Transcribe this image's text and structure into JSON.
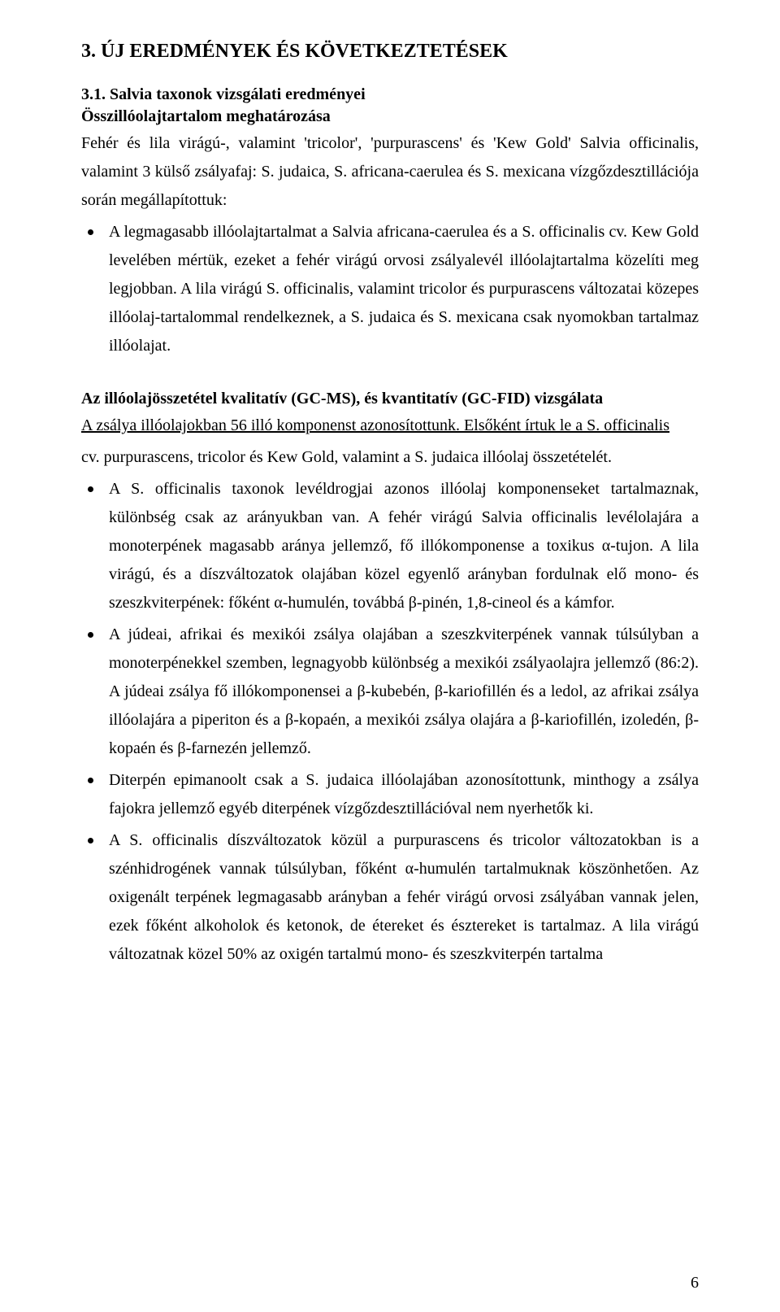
{
  "headings": {
    "h1": "3. ÚJ EREDMÉNYEK ÉS KÖVETKEZTETÉSEK",
    "h2": "3.1. Salvia taxonok vizsgálati eredményei",
    "h3_1": "Összillóolajtartalom meghatározása",
    "h3_2": "Az illóolajösszetétel kvalitatív (GC-MS), és kvantitatív (GC-FID) vizsgálata"
  },
  "intro1": "Fehér és lila virágú-, valamint 'tricolor', 'purpurascens' és 'Kew Gold' Salvia officinalis, valamint 3 külső zsályafaj: S. judaica, S. africana-caerulea és S. mexicana vízgőzdesztillációja során megállapítottuk:",
  "bullets1": [
    "A legmagasabb illóolajtartalmat a Salvia africana-caerulea és a S. officinalis cv. Kew Gold levelében mértük, ezeket a fehér virágú orvosi zsályalevél illóolajtartalma közelíti meg legjobban. A lila virágú S. officinalis, valamint tricolor és purpurascens változatai közepes illóolaj-tartalommal rendelkeznek, a S. judaica és S. mexicana csak nyomokban tartalmaz illóolajat."
  ],
  "intro2a": "A zsálya illóolajokban 56 illó komponenst azonosítottunk. Elsőként írtuk le a S. officinalis",
  "intro2b": "cv. purpurascens, tricolor és Kew Gold, valamint a S. judaica illóolaj összetételét.",
  "bullets2": [
    "A S. officinalis taxonok levéldrogjai azonos illóolaj komponenseket tartalmaznak, különbség csak az arányukban van. A fehér virágú Salvia officinalis levélolajára a monoterpének magasabb aránya jellemző, fő illókomponense a toxikus α-tujon. A lila virágú, és a díszváltozatok olajában közel egyenlő arányban fordulnak elő mono- és szeszkviterpének: főként α-humulén, továbbá β-pinén, 1,8-cineol és a kámfor.",
    "A júdeai, afrikai és mexikói zsálya olajában a szeszkviterpének vannak túlsúlyban a monoterpénekkel szemben, legnagyobb különbség a mexikói zsályaolajra jellemző (86:2). A júdeai zsálya fő illókomponensei a β-kubebén, β-kariofillén és a ledol, az afrikai zsálya  illóolajára a piperiton és a β-kopaén, a mexikói zsálya olajára a β-kariofillén, izoledén, β-kopaén és β-farnezén jellemző.",
    "Diterpén epimanoolt csak a S. judaica illóolajában azonosítottunk, minthogy a zsálya fajokra jellemző egyéb diterpének vízgőzdesztillációval nem nyerhetők ki.",
    "A S. officinalis díszváltozatok közül a purpurascens és tricolor változatokban is a szénhidrogének vannak túlsúlyban, főként α-humulén tartalmuknak köszönhetően. Az oxigenált terpének legmagasabb arányban a fehér virágú orvosi zsályában vannak jelen, ezek főként alkoholok és ketonok, de étereket és észtereket is tartalmaz. A lila virágú változatnak közel 50% az oxigén tartalmú mono- és szeszkviterpén tartalma"
  ],
  "pagenum": "6"
}
